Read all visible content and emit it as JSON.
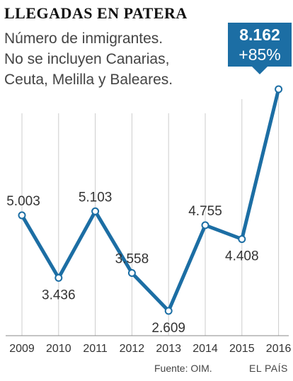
{
  "header": {
    "title": "LLEGADAS EN PATERA",
    "subtitle_lines": [
      "Número de inmigrantes.",
      "No se incluyen Canarias,",
      "Ceuta, Melilla y Baleares."
    ]
  },
  "callout": {
    "value": "8.162",
    "change": "+85%"
  },
  "footer": {
    "source": "Fuente: OIM.",
    "brand": "EL PAÍS"
  },
  "colors": {
    "line": "#1c6ea4",
    "callout": "#1c6ea4",
    "point_fill": "#ffffff",
    "grid": "#cccccc"
  },
  "chart_data": {
    "type": "line",
    "title": "LLEGADAS EN PATERA",
    "categories": [
      "2009",
      "2010",
      "2011",
      "2012",
      "2013",
      "2014",
      "2015",
      "2016"
    ],
    "series": [
      {
        "values": [
          5003,
          3436,
          5103,
          3558,
          2609,
          4755,
          4408,
          8162
        ]
      }
    ],
    "data_labels": [
      "5.003",
      "3.436",
      "5.103",
      "3.558",
      "2.609",
      "4.755",
      "4.408",
      "8.162"
    ],
    "ylim": [
      2000,
      8500
    ],
    "grid": "vertical",
    "xlabel": "",
    "ylabel": ""
  }
}
